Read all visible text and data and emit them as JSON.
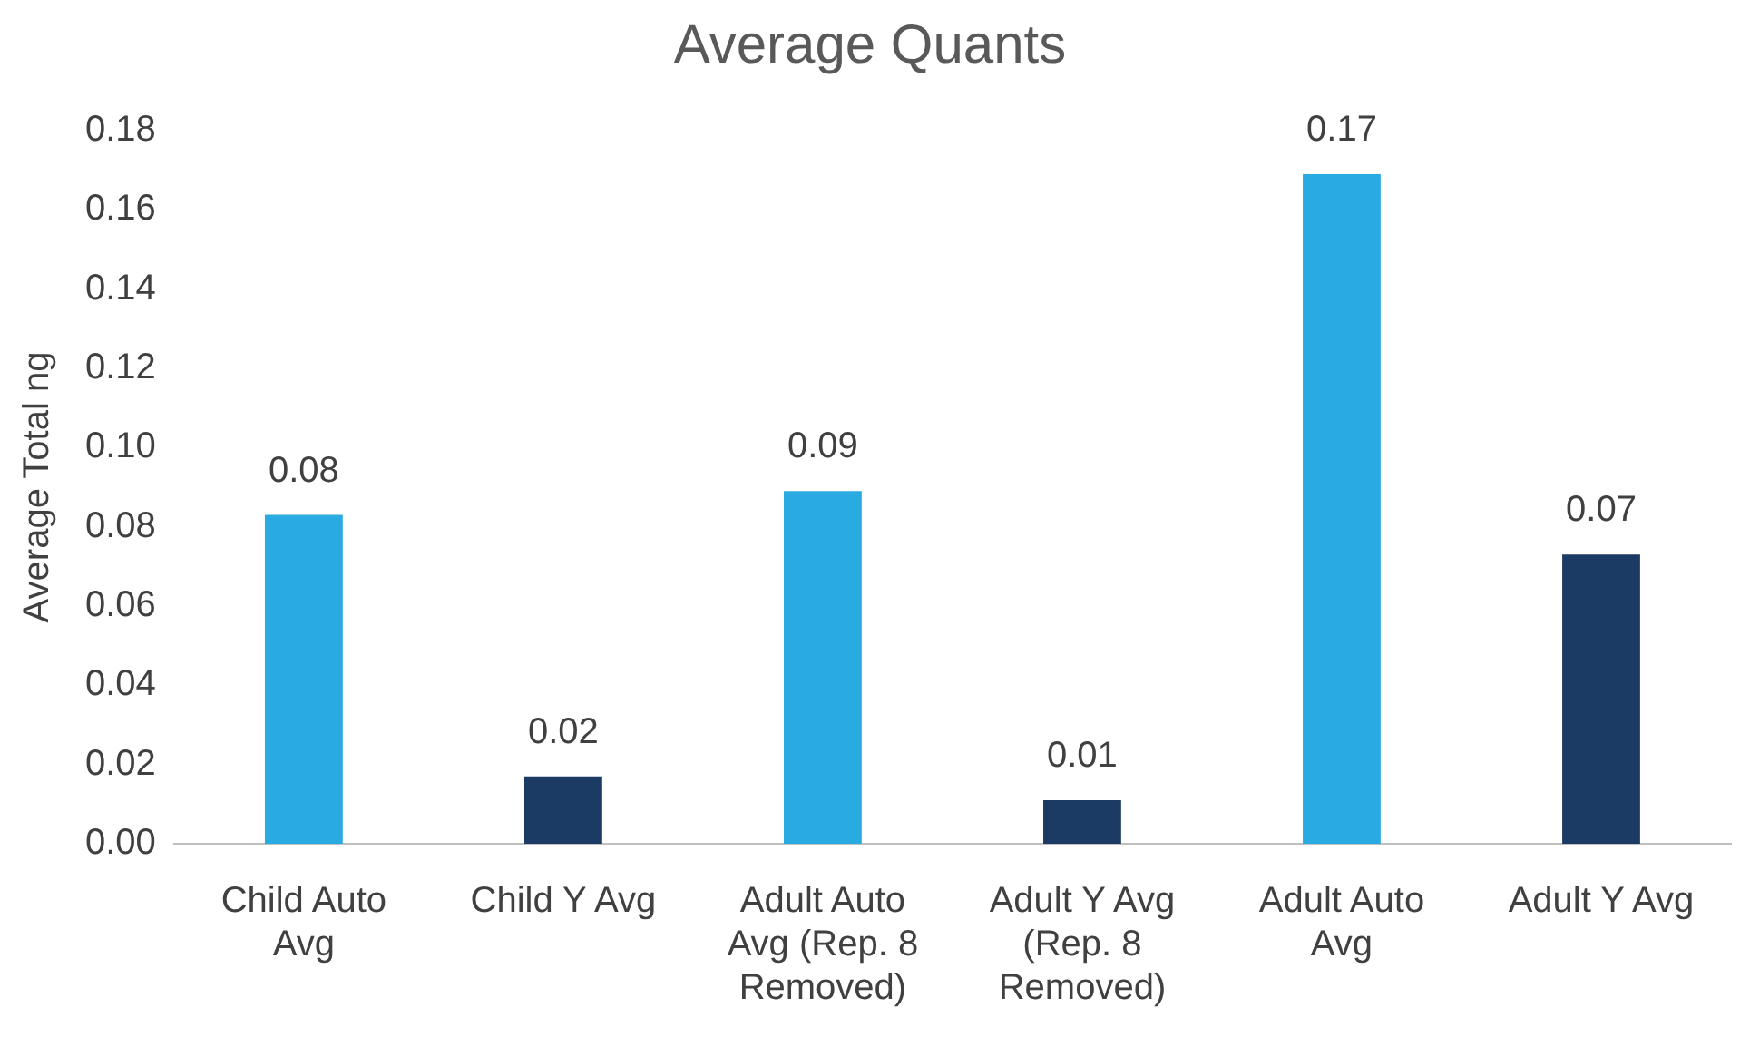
{
  "chart_data": {
    "type": "bar",
    "title": "Average Quants",
    "ylabel": "Average Total ng",
    "categories": [
      "Child Auto Avg",
      "Child Y Avg",
      "Adult Auto Avg (Rep. 8 Removed)",
      "Adult Y Avg (Rep. 8 Removed)",
      "Adult Auto Avg",
      "Adult Y Avg"
    ],
    "values": [
      0.083,
      0.017,
      0.089,
      0.011,
      0.169,
      0.073
    ],
    "colors": [
      "#29abe2",
      "#1b3a64",
      "#29abe2",
      "#1b3a64",
      "#29abe2",
      "#1b3a64"
    ],
    "value_labels": [
      "0.08",
      "0.02",
      "0.09",
      "0.01",
      "0.17",
      "0.07"
    ],
    "ylim": [
      0,
      0.18
    ],
    "yticks": [
      {
        "value": 0,
        "label": "0.00"
      },
      {
        "value": 0.02,
        "label": "0.02"
      },
      {
        "value": 0.04,
        "label": "0.04"
      },
      {
        "value": 0.06,
        "label": "0.06"
      },
      {
        "value": 0.08,
        "label": "0.08"
      },
      {
        "value": 0.1,
        "label": "0.10"
      },
      {
        "value": 0.12,
        "label": "0.12"
      },
      {
        "value": 0.14,
        "label": "0.14"
      },
      {
        "value": 0.16,
        "label": "0.16"
      },
      {
        "value": 0.18,
        "label": "0.18"
      }
    ],
    "grid": false,
    "legend": false
  }
}
